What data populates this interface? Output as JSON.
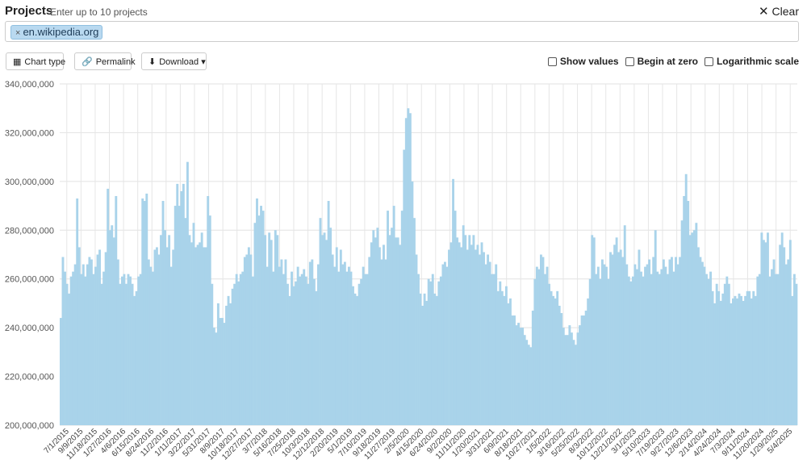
{
  "header": {
    "title": "Projects",
    "hint": "Enter up to 10 projects",
    "clear_label": "Clear",
    "projects": [
      {
        "remove": "×",
        "name": "en.wikipedia.org"
      }
    ]
  },
  "toolbar": {
    "chart_type_label": "Chart type",
    "permalink_label": "Permalink",
    "download_label": "Download",
    "options": [
      {
        "label": "Show values",
        "checked": false
      },
      {
        "label": "Begin at zero",
        "checked": false
      },
      {
        "label": "Logarithmic scale",
        "checked": false
      }
    ]
  },
  "chart_data": {
    "type": "bar",
    "title": "",
    "xlabel": "",
    "ylabel": "",
    "ylim": [
      200000000,
      340000000
    ],
    "y_ticks": [
      "200,000,000",
      "220,000,000",
      "240,000,000",
      "260,000,000",
      "280,000,000",
      "300,000,000",
      "320,000,000",
      "340,000,000"
    ],
    "x_tick_labels": [
      "7/1/2015",
      "9/9/2015",
      "11/18/2015",
      "1/27/2016",
      "4/6/2016",
      "6/15/2016",
      "8/24/2016",
      "11/2/2016",
      "1/11/2017",
      "3/22/2017",
      "5/31/2017",
      "8/9/2017",
      "10/18/2017",
      "12/27/2017",
      "3/7/2018",
      "5/16/2018",
      "7/25/2018",
      "10/3/2018",
      "12/12/2018",
      "2/20/2019",
      "5/1/2019",
      "7/10/2019",
      "9/18/2019",
      "11/27/2019",
      "2/5/2020",
      "4/15/2020",
      "6/24/2020",
      "9/2/2020",
      "11/11/2020",
      "1/20/2021",
      "3/31/2021",
      "6/9/2021",
      "8/18/2021",
      "10/27/2021",
      "1/5/2022",
      "3/16/2022",
      "5/25/2022",
      "8/3/2022",
      "10/12/2022",
      "12/21/2022",
      "3/1/2023",
      "5/10/2023",
      "7/19/2023",
      "9/27/2023",
      "12/6/2023",
      "2/14/2024",
      "4/24/2024",
      "7/3/2024",
      "9/11/2024",
      "11/20/2024",
      "1/29/2025",
      "5/4/2025"
    ],
    "series": [
      {
        "color": "#a9d3ea",
        "values": [
          2.44,
          2.69,
          2.63,
          2.58,
          2.54,
          2.61,
          2.63,
          2.66,
          2.93,
          2.73,
          2.62,
          2.66,
          2.61,
          2.66,
          2.69,
          2.68,
          2.62,
          2.65,
          2.7,
          2.72,
          2.58,
          2.63,
          2.71,
          2.97,
          2.8,
          2.82,
          2.77,
          2.94,
          2.68,
          2.58,
          2.61,
          2.62,
          2.58,
          2.62,
          2.61,
          2.58,
          2.53,
          2.55,
          2.61,
          2.62,
          2.93,
          2.92,
          2.95,
          2.68,
          2.65,
          2.63,
          2.72,
          2.73,
          2.7,
          2.78,
          2.92,
          2.8,
          2.73,
          2.78,
          2.65,
          2.72,
          2.9,
          2.99,
          2.9,
          2.96,
          2.99,
          2.85,
          3.08,
          2.78,
          2.75,
          2.83,
          2.73,
          2.74,
          2.75,
          2.79,
          2.73,
          2.73,
          2.94,
          2.86,
          2.58,
          2.4,
          2.38,
          2.5,
          2.44,
          2.44,
          2.42,
          2.49,
          2.53,
          2.5,
          2.56,
          2.58,
          2.62,
          2.59,
          2.62,
          2.63,
          2.69,
          2.7,
          2.73,
          2.7,
          2.61,
          2.83,
          2.93,
          2.86,
          2.9,
          2.88,
          2.78,
          2.65,
          2.79,
          2.76,
          2.63,
          2.8,
          2.78,
          2.65,
          2.68,
          2.62,
          2.68,
          2.58,
          2.53,
          2.63,
          2.57,
          2.59,
          2.65,
          2.61,
          2.62,
          2.64,
          2.61,
          2.58,
          2.67,
          2.68,
          2.6,
          2.55,
          2.66,
          2.85,
          2.78,
          2.79,
          2.76,
          2.92,
          2.81,
          2.7,
          2.65,
          2.73,
          2.63,
          2.72,
          2.66,
          2.67,
          2.63,
          2.65,
          2.63,
          2.57,
          2.54,
          2.53,
          2.58,
          2.6,
          2.65,
          2.62,
          2.62,
          2.69,
          2.75,
          2.8,
          2.77,
          2.81,
          2.73,
          2.68,
          2.74,
          2.68,
          2.88,
          2.78,
          2.81,
          2.9,
          2.77,
          2.77,
          2.74,
          2.88,
          3.13,
          3.26,
          3.3,
          3.28,
          3.0,
          2.85,
          2.7,
          2.62,
          2.54,
          2.49,
          2.54,
          2.51,
          2.6,
          2.59,
          2.62,
          2.54,
          2.53,
          2.59,
          2.61,
          2.66,
          2.67,
          2.65,
          2.72,
          2.75,
          3.01,
          2.88,
          2.77,
          2.75,
          2.73,
          2.82,
          2.78,
          2.72,
          2.78,
          2.74,
          2.78,
          2.72,
          2.74,
          2.7,
          2.75,
          2.71,
          2.66,
          2.7,
          2.67,
          2.62,
          2.62,
          2.66,
          2.55,
          2.59,
          2.55,
          2.53,
          2.57,
          2.5,
          2.52,
          2.45,
          2.45,
          2.41,
          2.42,
          2.4,
          2.4,
          2.37,
          2.35,
          2.33,
          2.32,
          2.47,
          2.6,
          2.65,
          2.64,
          2.7,
          2.69,
          2.62,
          2.65,
          2.58,
          2.55,
          2.53,
          2.52,
          2.55,
          2.49,
          2.46,
          2.4,
          2.37,
          2.37,
          2.41,
          2.38,
          2.35,
          2.33,
          2.38,
          2.41,
          2.45,
          2.45,
          2.47,
          2.52,
          2.6,
          2.78,
          2.77,
          2.62,
          2.65,
          2.6,
          2.68,
          2.66,
          2.65,
          2.6,
          2.71,
          2.7,
          2.74,
          2.77,
          2.71,
          2.72,
          2.69,
          2.82,
          2.66,
          2.61,
          2.59,
          2.61,
          2.66,
          2.64,
          2.72,
          2.63,
          2.61,
          2.65,
          2.66,
          2.68,
          2.62,
          2.69,
          2.8,
          2.63,
          2.62,
          2.64,
          2.68,
          2.65,
          2.62,
          2.68,
          2.69,
          2.63,
          2.69,
          2.66,
          2.69,
          2.84,
          2.94,
          3.03,
          2.92,
          2.78,
          2.79,
          2.8,
          2.83,
          2.73,
          2.69,
          2.67,
          2.65,
          2.62,
          2.6,
          2.63,
          2.55,
          2.5,
          2.58,
          2.55,
          2.51,
          2.54,
          2.58,
          2.61,
          2.58,
          2.5,
          2.52,
          2.53,
          2.52,
          2.54,
          2.53,
          2.51,
          2.53,
          2.55,
          2.55,
          2.52,
          2.55,
          2.53,
          2.61,
          2.62,
          2.79,
          2.76,
          2.75,
          2.79,
          2.61,
          2.64,
          2.68,
          2.62,
          2.62,
          2.74,
          2.79,
          2.73,
          2.66,
          2.68,
          2.76,
          2.53,
          2.62,
          2.58
        ]
      }
    ]
  }
}
